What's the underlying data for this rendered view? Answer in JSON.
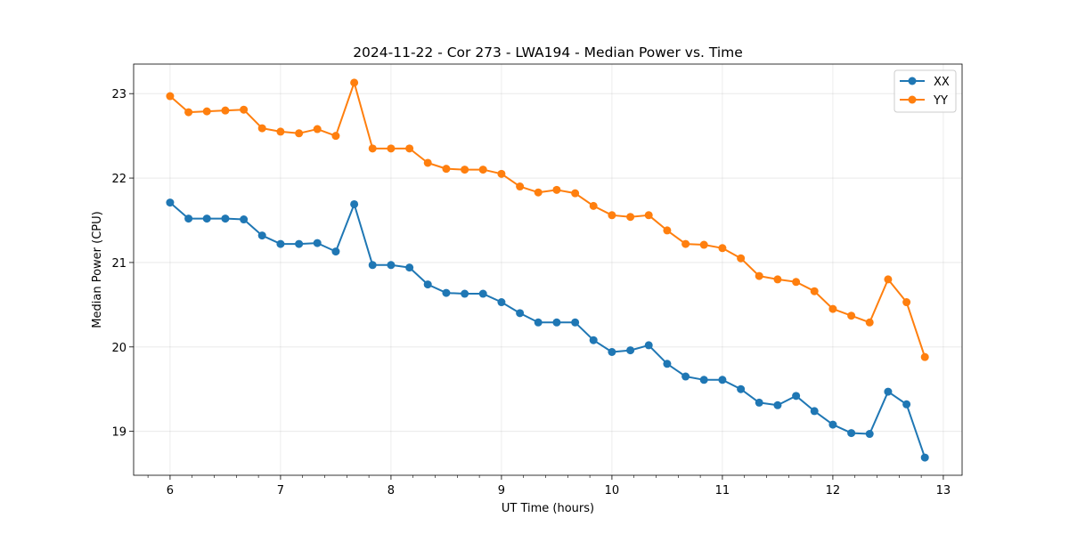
{
  "chart_data": {
    "type": "line",
    "title": "2024-11-22 - Cor 273 - LWA194 - Median Power vs. Time",
    "xlabel": "UT Time (hours)",
    "ylabel": "Median Power (CPU)",
    "xlim": [
      5.67,
      13.17
    ],
    "ylim": [
      18.48,
      23.35
    ],
    "xticks": [
      6,
      7,
      8,
      9,
      10,
      11,
      12,
      13
    ],
    "yticks": [
      19,
      20,
      21,
      22,
      23
    ],
    "xminor_step": 0.2,
    "grid": true,
    "legend_position": "top-right",
    "x": [
      6.0,
      6.167,
      6.333,
      6.5,
      6.667,
      6.833,
      7.0,
      7.167,
      7.333,
      7.5,
      7.667,
      7.833,
      8.0,
      8.167,
      8.333,
      8.5,
      8.667,
      8.833,
      9.0,
      9.167,
      9.333,
      9.5,
      9.667,
      9.833,
      10.0,
      10.167,
      10.333,
      10.5,
      10.667,
      10.833,
      11.0,
      11.167,
      11.333,
      11.5,
      11.667,
      11.833,
      12.0,
      12.167,
      12.333,
      12.5,
      12.667,
      12.833
    ],
    "series": [
      {
        "name": "XX",
        "color": "#1f77b4",
        "values": [
          21.71,
          21.52,
          21.52,
          21.52,
          21.51,
          21.32,
          21.22,
          21.22,
          21.23,
          21.13,
          21.69,
          20.97,
          20.97,
          20.94,
          20.74,
          20.64,
          20.63,
          20.63,
          20.53,
          20.4,
          20.29,
          20.29,
          20.29,
          20.08,
          19.94,
          19.96,
          20.02,
          19.8,
          19.65,
          19.61,
          19.61,
          19.5,
          19.34,
          19.31,
          19.42,
          19.24,
          19.08,
          18.98,
          18.97,
          19.47,
          19.32,
          18.69
        ]
      },
      {
        "name": "YY",
        "color": "#ff7f0e",
        "values": [
          22.97,
          22.78,
          22.79,
          22.8,
          22.81,
          22.59,
          22.55,
          22.53,
          22.58,
          22.5,
          23.13,
          22.35,
          22.35,
          22.35,
          22.18,
          22.11,
          22.1,
          22.1,
          22.05,
          21.9,
          21.83,
          21.86,
          21.82,
          21.67,
          21.56,
          21.54,
          21.56,
          21.38,
          21.22,
          21.21,
          21.17,
          21.05,
          20.84,
          20.8,
          20.77,
          20.66,
          20.45,
          20.37,
          20.29,
          20.8,
          20.53,
          19.88
        ]
      }
    ]
  }
}
